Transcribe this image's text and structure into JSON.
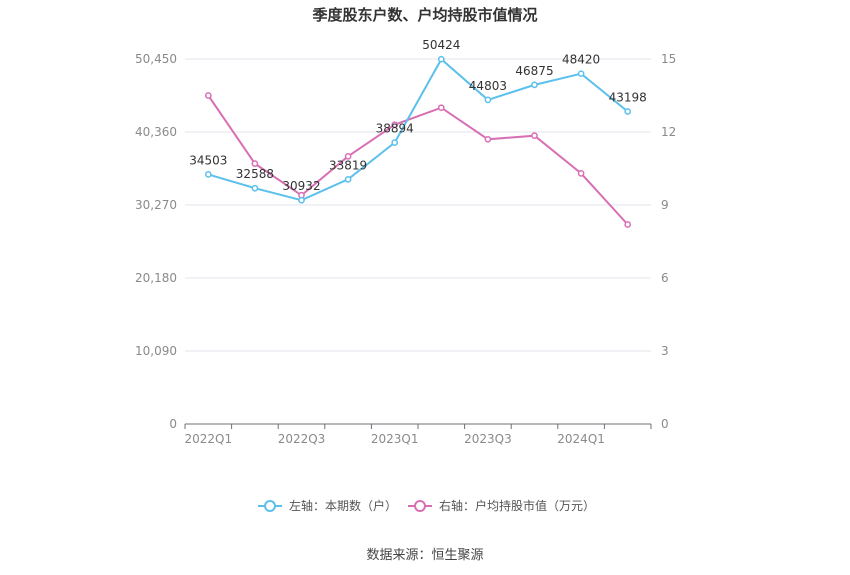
{
  "chart_data": {
    "type": "line",
    "title": "季度股东户数、户均持股市值情况",
    "categories": [
      "2022Q1",
      "2022Q2",
      "2022Q3",
      "2022Q4",
      "2023Q1",
      "2023Q2",
      "2023Q3",
      "2023Q4",
      "2024Q1",
      "2024Q2"
    ],
    "x_tick_labels": [
      "2022Q1",
      "2022Q3",
      "2023Q1",
      "2023Q3",
      "2024Q1"
    ],
    "left_axis": {
      "ylim": [
        0,
        50450
      ],
      "ticks": [
        0,
        10090,
        20180,
        30270,
        40360,
        50450
      ],
      "tick_labels": [
        "0",
        "10,090",
        "20,180",
        "30,270",
        "40,360",
        "50,450"
      ]
    },
    "right_axis": {
      "ylim": [
        0,
        15
      ],
      "ticks": [
        0,
        3,
        6,
        9,
        12,
        15
      ],
      "tick_labels": [
        "0",
        "3",
        "6",
        "9",
        "12",
        "15"
      ]
    },
    "series": [
      {
        "name": "左轴：本期数（户）",
        "axis": "left",
        "color": "#5bc0eb",
        "values": [
          34503,
          32588,
          30932,
          33819,
          38894,
          50424,
          44803,
          46875,
          48420,
          43198
        ],
        "labels": [
          "34503",
          "32588",
          "30932",
          "33819",
          "38894",
          "50424",
          "44803",
          "46875",
          "48420",
          "43198"
        ]
      },
      {
        "name": "右轴：户均持股市值（万元）",
        "axis": "right",
        "color": "#d86fb4",
        "values": [
          13.5,
          10.7,
          9.4,
          11.0,
          12.3,
          13.0,
          11.7,
          11.85,
          10.3,
          8.2
        ]
      }
    ],
    "grid": true,
    "legend": "bottom"
  },
  "source": "数据来源：恒生聚源"
}
